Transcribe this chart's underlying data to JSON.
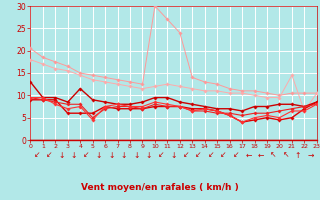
{
  "background_color": "#b2e8e8",
  "grid_color": "#ffffff",
  "x_min": 0,
  "x_max": 23,
  "y_min": 0,
  "y_max": 30,
  "y_ticks": [
    0,
    5,
    10,
    15,
    20,
    25,
    30
  ],
  "xlabel": "Vent moyen/en rafales ( km/h )",
  "xlabel_color": "#cc0000",
  "tick_color": "#cc0000",
  "lines": [
    {
      "x": [
        0,
        1,
        2,
        3,
        4,
        5,
        6,
        7,
        8,
        9,
        10,
        11,
        12,
        13,
        14,
        15,
        16,
        17,
        18,
        19,
        20,
        21,
        22,
        23
      ],
      "y": [
        20.5,
        18.5,
        17.5,
        16.5,
        15.0,
        14.5,
        14.0,
        13.5,
        13.0,
        12.5,
        30.0,
        27.0,
        24.0,
        14.0,
        13.0,
        12.5,
        11.5,
        11.0,
        11.0,
        10.5,
        10.0,
        10.5,
        10.5,
        10.5
      ],
      "color": "#ff9999",
      "lw": 0.7,
      "marker": "D",
      "ms": 1.8
    },
    {
      "x": [
        0,
        1,
        2,
        3,
        4,
        5,
        6,
        7,
        8,
        9,
        10,
        11,
        12,
        13,
        14,
        15,
        16,
        17,
        18,
        19,
        20,
        21,
        22,
        23
      ],
      "y": [
        18.0,
        17.0,
        16.0,
        15.5,
        14.5,
        13.5,
        13.0,
        12.5,
        12.0,
        11.5,
        12.0,
        12.5,
        12.0,
        11.5,
        11.0,
        11.0,
        10.5,
        10.5,
        10.0,
        9.5,
        9.5,
        14.5,
        6.5,
        10.5
      ],
      "color": "#ffaaaa",
      "lw": 0.7,
      "marker": "D",
      "ms": 1.8
    },
    {
      "x": [
        0,
        1,
        2,
        3,
        4,
        5,
        6,
        7,
        8,
        9,
        10,
        11,
        12,
        13,
        14,
        15,
        16,
        17,
        18,
        19,
        20,
        21,
        22,
        23
      ],
      "y": [
        13.0,
        9.5,
        9.5,
        8.5,
        11.5,
        9.0,
        8.5,
        8.0,
        8.0,
        8.5,
        9.5,
        9.5,
        8.5,
        8.0,
        7.5,
        7.0,
        7.0,
        6.5,
        7.5,
        7.5,
        8.0,
        8.0,
        7.5,
        8.5
      ],
      "color": "#cc0000",
      "lw": 1.0,
      "marker": "D",
      "ms": 1.8
    },
    {
      "x": [
        0,
        1,
        2,
        3,
        4,
        5,
        6,
        7,
        8,
        9,
        10,
        11,
        12,
        13,
        14,
        15,
        16,
        17,
        18,
        19,
        20,
        21,
        22,
        23
      ],
      "y": [
        9.0,
        9.0,
        9.0,
        6.0,
        6.0,
        6.0,
        7.5,
        7.0,
        7.0,
        7.0,
        7.5,
        7.5,
        7.5,
        7.0,
        7.0,
        6.5,
        5.5,
        4.0,
        4.5,
        5.0,
        4.5,
        5.0,
        7.0,
        8.5
      ],
      "color": "#dd0000",
      "lw": 1.0,
      "marker": "D",
      "ms": 1.8
    },
    {
      "x": [
        0,
        1,
        2,
        3,
        4,
        5,
        6,
        7,
        8,
        9,
        10,
        11,
        12,
        13,
        14,
        15,
        16,
        17,
        18,
        19,
        20,
        21,
        22,
        23
      ],
      "y": [
        9.5,
        9.0,
        8.5,
        8.0,
        8.0,
        5.0,
        7.0,
        7.5,
        7.5,
        7.0,
        8.0,
        7.5,
        7.5,
        6.5,
        6.5,
        6.0,
        6.0,
        5.5,
        6.0,
        6.0,
        6.5,
        7.0,
        7.5,
        8.0
      ],
      "color": "#ee2222",
      "lw": 0.8,
      "marker": "D",
      "ms": 1.8
    },
    {
      "x": [
        0,
        1,
        2,
        3,
        4,
        5,
        6,
        7,
        8,
        9,
        10,
        11,
        12,
        13,
        14,
        15,
        16,
        17,
        18,
        19,
        20,
        21,
        22,
        23
      ],
      "y": [
        9.5,
        9.5,
        8.0,
        7.0,
        7.5,
        4.5,
        7.5,
        8.0,
        7.5,
        7.5,
        8.5,
        8.0,
        7.5,
        6.5,
        7.0,
        6.5,
        5.5,
        4.0,
        5.0,
        5.5,
        5.0,
        6.5,
        6.5,
        8.0
      ],
      "color": "#ff3333",
      "lw": 0.8,
      "marker": "D",
      "ms": 1.8
    }
  ],
  "arrow_symbols": [
    "↙",
    "↙",
    "↓",
    "↓",
    "↙",
    "↓",
    "↓",
    "↓",
    "↓",
    "↓",
    "↙",
    "↓",
    "↙",
    "↙",
    "↙",
    "↙",
    "↙",
    "←",
    "←",
    "↖",
    "↖",
    "↑",
    "→"
  ],
  "arrow_color": "#cc0000",
  "arrow_fontsize": 5.5,
  "hline_color": "#cc0000",
  "hline_lw": 1.0
}
